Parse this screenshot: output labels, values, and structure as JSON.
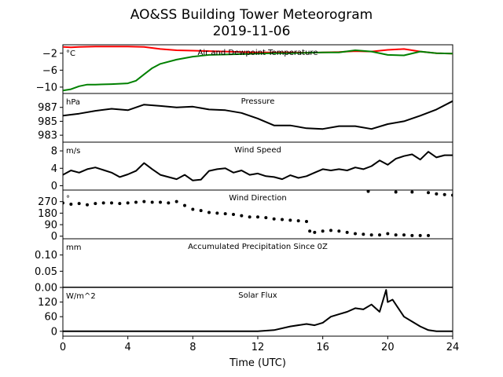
{
  "title_line1": "AO&SS Building Tower Meteorogram",
  "title_line2": "2019-11-06",
  "xlabel": "Time (UTC)",
  "x_ticks": [
    0,
    4,
    8,
    12,
    16,
    20,
    24
  ],
  "chart_data": [
    {
      "type": "line",
      "title": "Air and Dewpoint Temperature",
      "unit": "°C",
      "ylim": [
        -11.5,
        0
      ],
      "yticks": [
        -2,
        -6,
        -10
      ],
      "series": [
        {
          "color": "#ff0000",
          "x": [
            0,
            0.5,
            1,
            2,
            3,
            4,
            5,
            6,
            7,
            8,
            9,
            10,
            11,
            12,
            13,
            14,
            15,
            16,
            17,
            17.5,
            18,
            19,
            20,
            21,
            22,
            23,
            24
          ],
          "y": [
            -0.5,
            -0.6,
            -0.5,
            -0.4,
            -0.4,
            -0.4,
            -0.5,
            -1.0,
            -1.3,
            -1.4,
            -1.5,
            -1.6,
            -1.7,
            -1.8,
            -1.8,
            -1.8,
            -1.9,
            -1.8,
            -1.7,
            -1.6,
            -1.5,
            -1.6,
            -1.2,
            -1.0,
            -1.6,
            -2.0,
            -2.1
          ]
        },
        {
          "color": "#008000",
          "x": [
            0,
            0.5,
            1,
            1.5,
            2,
            3,
            4,
            4.5,
            5,
            5.5,
            6,
            7,
            8,
            9,
            10,
            11,
            12,
            13,
            14,
            15,
            16,
            17,
            18,
            19,
            20,
            21,
            22,
            23,
            24
          ],
          "y": [
            -10.8,
            -10.5,
            -9.8,
            -9.4,
            -9.4,
            -9.3,
            -9.1,
            -8.5,
            -7.0,
            -5.5,
            -4.5,
            -3.5,
            -2.8,
            -2.4,
            -2.3,
            -2.2,
            -2.1,
            -2.0,
            -2.0,
            -1.9,
            -1.8,
            -1.8,
            -1.3,
            -1.6,
            -2.4,
            -2.5,
            -1.6,
            -2.0,
            -2.1
          ]
        }
      ]
    },
    {
      "type": "line",
      "title": "Pressure",
      "unit": "hPa",
      "ylim": [
        982,
        989
      ],
      "yticks": [
        987,
        985,
        983
      ],
      "series": [
        {
          "color": "#000000",
          "x": [
            0,
            1,
            2,
            3,
            4,
            5,
            6,
            7,
            8,
            9,
            10,
            11,
            12,
            13,
            14,
            15,
            16,
            17,
            18,
            19,
            20,
            21,
            22,
            23,
            24
          ],
          "y": [
            985.8,
            986.1,
            986.5,
            986.8,
            986.6,
            987.4,
            987.2,
            987.0,
            987.1,
            986.7,
            986.6,
            986.2,
            985.4,
            984.4,
            984.4,
            984.0,
            983.9,
            984.3,
            984.3,
            983.9,
            984.6,
            985.0,
            985.8,
            986.7,
            987.9
          ]
        }
      ]
    },
    {
      "type": "line",
      "title": "Wind Speed",
      "unit": "m/s",
      "ylim": [
        -1,
        10
      ],
      "yticks": [
        8,
        4,
        0
      ],
      "series": [
        {
          "color": "#000000",
          "x": [
            0,
            0.5,
            1,
            1.5,
            2,
            2.5,
            3,
            3.5,
            4,
            4.5,
            5,
            5.5,
            6,
            6.5,
            7,
            7.5,
            8,
            8.5,
            9,
            9.5,
            10,
            10.5,
            11,
            11.5,
            12,
            12.5,
            13,
            13.5,
            14,
            14.5,
            15,
            15.5,
            16,
            16.5,
            17,
            17.5,
            18,
            18.5,
            19,
            19.5,
            20,
            20.5,
            21,
            21.5,
            22,
            22.5,
            23,
            23.5,
            24
          ],
          "y": [
            2.5,
            3.5,
            3.0,
            3.8,
            4.2,
            3.6,
            3.0,
            2.0,
            2.6,
            3.4,
            5.2,
            3.8,
            2.5,
            2.0,
            1.5,
            2.5,
            1.2,
            1.4,
            3.4,
            3.8,
            4.0,
            3.0,
            3.5,
            2.5,
            2.8,
            2.2,
            2.0,
            1.5,
            2.4,
            1.8,
            2.2,
            3.0,
            3.8,
            3.5,
            3.8,
            3.5,
            4.2,
            3.8,
            4.5,
            5.8,
            4.8,
            6.2,
            6.8,
            7.2,
            6.0,
            7.8,
            6.5,
            7.0,
            7.0
          ]
        }
      ]
    },
    {
      "type": "scatter",
      "title": "Wind Direction",
      "unit": "°",
      "ylim": [
        -20,
        360
      ],
      "yticks": [
        270,
        180,
        90,
        0
      ],
      "series": [
        {
          "color": "#000000",
          "x": [
            0,
            0.5,
            1,
            1.5,
            2,
            2.5,
            3,
            3.5,
            4,
            4.5,
            5,
            5.5,
            6,
            6.5,
            7,
            7.5,
            8,
            8.5,
            9,
            9.5,
            10,
            10.5,
            11,
            11.5,
            12,
            12.5,
            13,
            13.5,
            14,
            14.5,
            15,
            15.2,
            15.5,
            16,
            16.5,
            17,
            17.5,
            18,
            18.5,
            19,
            19.5,
            20,
            20.5,
            21,
            21.5,
            22,
            22.5,
            18.8,
            20.5,
            21.5,
            22.5,
            23,
            23.5,
            24
          ],
          "y": [
            260,
            250,
            255,
            245,
            255,
            260,
            260,
            255,
            260,
            265,
            270,
            265,
            265,
            260,
            270,
            240,
            210,
            200,
            185,
            180,
            175,
            170,
            160,
            150,
            150,
            145,
            135,
            130,
            125,
            120,
            115,
            40,
            30,
            40,
            45,
            40,
            30,
            20,
            15,
            10,
            10,
            20,
            10,
            10,
            5,
            5,
            5,
            350,
            345,
            345,
            340,
            330,
            325,
            320
          ]
        }
      ]
    },
    {
      "type": "line",
      "title": "Accumulated Precipitation Since 0Z",
      "unit": "mm",
      "ylim": [
        0,
        0.15
      ],
      "yticks": [
        0.1,
        0.05,
        0.0
      ],
      "series": [
        {
          "color": "#000000",
          "x": [
            0,
            24
          ],
          "y": [
            0,
            0
          ]
        }
      ]
    },
    {
      "type": "line",
      "title": "Solar Flux",
      "unit": "W/m^2",
      "ylim": [
        -20,
        180
      ],
      "yticks": [
        120,
        60,
        0
      ],
      "series": [
        {
          "color": "#000000",
          "x": [
            0,
            12,
            13,
            14,
            15,
            15.5,
            16,
            16.5,
            17,
            17.5,
            18,
            18.5,
            19,
            19.5,
            19.9,
            20,
            20.3,
            20.6,
            21,
            21.5,
            22,
            22.5,
            23,
            24
          ],
          "y": [
            0,
            0,
            5,
            20,
            30,
            25,
            35,
            60,
            70,
            80,
            95,
            90,
            110,
            80,
            170,
            120,
            130,
            100,
            60,
            40,
            20,
            5,
            0,
            0
          ]
        }
      ]
    }
  ]
}
